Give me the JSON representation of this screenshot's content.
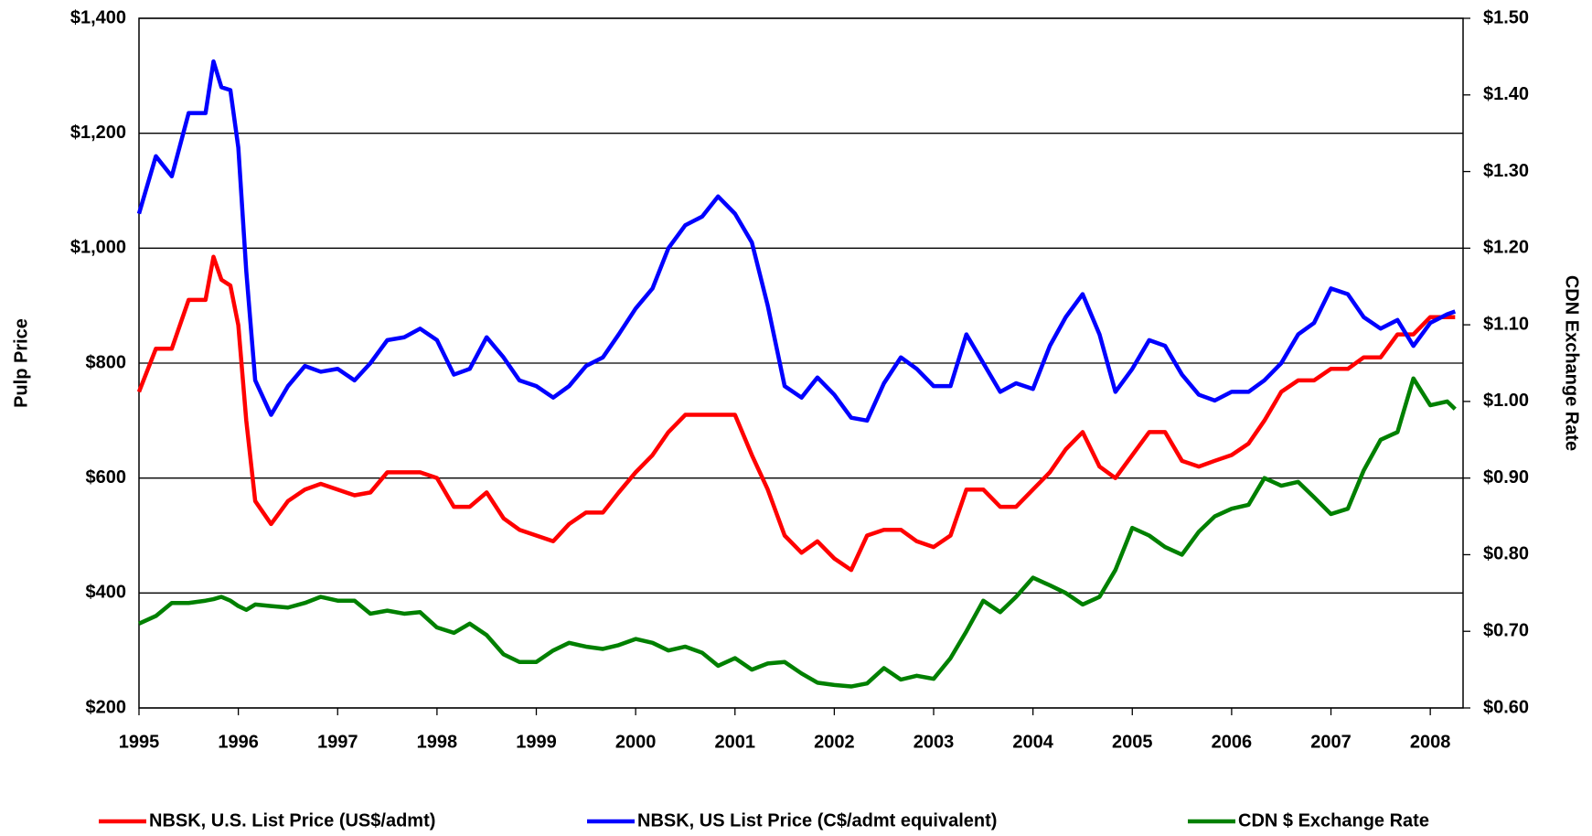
{
  "chart_data": {
    "type": "line",
    "y_label": "Pulp Price",
    "y2_label": "CDN Exchange Rate",
    "x": [
      1995.0,
      1995.17,
      1995.33,
      1995.5,
      1995.67,
      1995.75,
      1995.83,
      1995.92,
      1996.0,
      1996.08,
      1996.17,
      1996.33,
      1996.5,
      1996.67,
      1996.83,
      1997.0,
      1997.17,
      1997.33,
      1997.5,
      1997.67,
      1997.83,
      1998.0,
      1998.17,
      1998.33,
      1998.5,
      1998.67,
      1998.83,
      1999.0,
      1999.17,
      1999.33,
      1999.5,
      1999.67,
      1999.83,
      2000.0,
      2000.17,
      2000.33,
      2000.5,
      2000.67,
      2000.83,
      2001.0,
      2001.17,
      2001.33,
      2001.5,
      2001.67,
      2001.83,
      2002.0,
      2002.17,
      2002.33,
      2002.5,
      2002.67,
      2002.83,
      2003.0,
      2003.17,
      2003.33,
      2003.5,
      2003.67,
      2003.83,
      2004.0,
      2004.17,
      2004.33,
      2004.5,
      2004.67,
      2004.83,
      2005.0,
      2005.17,
      2005.33,
      2005.5,
      2005.67,
      2005.83,
      2006.0,
      2006.17,
      2006.33,
      2006.5,
      2006.67,
      2006.83,
      2007.0,
      2007.17,
      2007.33,
      2007.5,
      2007.67,
      2007.83,
      2008.0,
      2008.17,
      2008.25
    ],
    "series": [
      {
        "name": "NBSK, U.S. List Price (US$/admt)",
        "color": "#ff0000",
        "axis": "y",
        "values": [
          750,
          825,
          825,
          910,
          910,
          985,
          945,
          935,
          866,
          700,
          560,
          520,
          560,
          580,
          590,
          580,
          570,
          575,
          610,
          610,
          610,
          600,
          550,
          550,
          575,
          530,
          510,
          500,
          490,
          520,
          540,
          540,
          575,
          610,
          640,
          680,
          710,
          710,
          710,
          710,
          640,
          580,
          500,
          470,
          490,
          460,
          440,
          500,
          510,
          510,
          490,
          480,
          500,
          580,
          580,
          550,
          550,
          580,
          610,
          650,
          680,
          620,
          600,
          640,
          680,
          680,
          630,
          620,
          630,
          640,
          660,
          700,
          750,
          770,
          770,
          790,
          790,
          810,
          810,
          850,
          850,
          880,
          880,
          880
        ]
      },
      {
        "name": "NBSK, US List Price (C$/admt equivalent)",
        "color": "#0000ff",
        "axis": "y",
        "values": [
          1060,
          1160,
          1125,
          1235,
          1235,
          1325,
          1280,
          1275,
          1175,
          960,
          770,
          710,
          760,
          795,
          785,
          790,
          770,
          800,
          840,
          845,
          860,
          840,
          780,
          790,
          845,
          810,
          770,
          760,
          740,
          760,
          795,
          810,
          850,
          895,
          930,
          1000,
          1040,
          1055,
          1090,
          1060,
          1010,
          900,
          760,
          740,
          775,
          745,
          705,
          700,
          765,
          810,
          790,
          760,
          760,
          850,
          800,
          750,
          765,
          755,
          830,
          880,
          920,
          850,
          750,
          790,
          840,
          830,
          780,
          745,
          735,
          750,
          750,
          770,
          800,
          850,
          870,
          930,
          920,
          880,
          860,
          875,
          830,
          870,
          885,
          890
        ]
      },
      {
        "name": "CDN $ Exchange Rate",
        "color": "#008000",
        "axis": "y2",
        "values": [
          0.71,
          0.72,
          0.737,
          0.737,
          0.74,
          0.742,
          0.745,
          0.74,
          0.733,
          0.728,
          0.735,
          0.733,
          0.731,
          0.737,
          0.745,
          0.74,
          0.74,
          0.723,
          0.727,
          0.723,
          0.725,
          0.705,
          0.698,
          0.71,
          0.695,
          0.67,
          0.66,
          0.66,
          0.675,
          0.685,
          0.68,
          0.677,
          0.682,
          0.69,
          0.685,
          0.675,
          0.68,
          0.672,
          0.655,
          0.665,
          0.65,
          0.658,
          0.66,
          0.645,
          0.633,
          0.63,
          0.628,
          0.632,
          0.652,
          0.637,
          0.642,
          0.638,
          0.665,
          0.7,
          0.74,
          0.725,
          0.745,
          0.77,
          0.76,
          0.75,
          0.735,
          0.745,
          0.78,
          0.835,
          0.825,
          0.81,
          0.8,
          0.83,
          0.85,
          0.86,
          0.865,
          0.9,
          0.89,
          0.895,
          0.875,
          0.853,
          0.86,
          0.91,
          0.95,
          0.96,
          1.03,
          0.995,
          1.0,
          0.99
        ]
      }
    ],
    "xlim": [
      1995,
      2008.33
    ],
    "xticks": [
      1995,
      1996,
      1997,
      1998,
      1999,
      2000,
      2001,
      2002,
      2003,
      2004,
      2005,
      2006,
      2007,
      2008
    ],
    "ylim": [
      200,
      1400
    ],
    "yticks": [
      {
        "value": 200,
        "label": "$200"
      },
      {
        "value": 400,
        "label": "$400"
      },
      {
        "value": 600,
        "label": "$600"
      },
      {
        "value": 800,
        "label": "$800"
      },
      {
        "value": 1000,
        "label": "$1,000"
      },
      {
        "value": 1200,
        "label": "$1,200"
      },
      {
        "value": 1400,
        "label": "$1,400"
      }
    ],
    "y2lim": [
      0.6,
      1.5
    ],
    "y2ticks": [
      {
        "value": 0.6,
        "label": "$0.60"
      },
      {
        "value": 0.7,
        "label": "$0.70"
      },
      {
        "value": 0.8,
        "label": "$0.80"
      },
      {
        "value": 0.9,
        "label": "$0.90"
      },
      {
        "value": 1.0,
        "label": "$1.00"
      },
      {
        "value": 1.1,
        "label": "$1.10"
      },
      {
        "value": 1.2,
        "label": "$1.20"
      },
      {
        "value": 1.3,
        "label": "$1.30"
      },
      {
        "value": 1.4,
        "label": "$1.40"
      },
      {
        "value": 1.5,
        "label": "$1.50"
      }
    ],
    "grid": true,
    "legend": "bottom"
  }
}
